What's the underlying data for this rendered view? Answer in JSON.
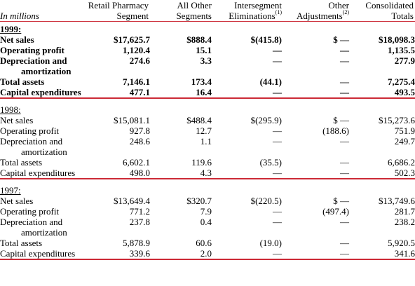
{
  "header": {
    "units": "In millions",
    "cols": [
      {
        "l1": "Retail Pharmacy",
        "l2": "Segment",
        "sup": ""
      },
      {
        "l1": "All Other",
        "l2": "Segments",
        "sup": ""
      },
      {
        "l1": "Intersegment",
        "l2": "Eliminations",
        "sup": "(1)"
      },
      {
        "l1": "Other",
        "l2": "Adjustments",
        "sup": "(2)"
      },
      {
        "l1": "Consolidated",
        "l2": "Totals",
        "sup": ""
      }
    ]
  },
  "sections": [
    {
      "year": "1999:",
      "rows": {
        "net_sales": {
          "label": "Net sales",
          "v": [
            "$17,625.7",
            "$888.4",
            "$(415.8)",
            "$ —",
            "$18,098.3"
          ]
        },
        "operating_profit": {
          "label": "Operating profit",
          "v": [
            "1,120.4",
            "15.1",
            "—",
            "—",
            "1,135.5"
          ]
        },
        "depreciation": {
          "label": "Depreciation and",
          "label2": "amortization",
          "v": [
            "274.6",
            "3.3",
            "—",
            "—",
            "277.9"
          ]
        },
        "total_assets": {
          "label": "Total assets",
          "v": [
            "7,146.1",
            "173.4",
            "(44.1)",
            "—",
            "7,275.4"
          ]
        },
        "capex": {
          "label": "Capital expenditures",
          "v": [
            "477.1",
            "16.4",
            "—",
            "—",
            "493.5"
          ]
        }
      }
    },
    {
      "year": "1998:",
      "rows": {
        "net_sales": {
          "label": "Net sales",
          "v": [
            "$15,081.1",
            "$488.4",
            "$(295.9)",
            "$ —",
            "$15,273.6"
          ]
        },
        "operating_profit": {
          "label": "Operating profit",
          "v": [
            "927.8",
            "12.7",
            "—",
            "(188.6)",
            "751.9"
          ]
        },
        "depreciation": {
          "label": "Depreciation and",
          "label2": "amortization",
          "v": [
            "248.6",
            "1.1",
            "—",
            "—",
            "249.7"
          ]
        },
        "total_assets": {
          "label": "Total assets",
          "v": [
            "6,602.1",
            "119.6",
            "(35.5)",
            "—",
            "6,686.2"
          ]
        },
        "capex": {
          "label": "Capital expenditures",
          "v": [
            "498.0",
            "4.3",
            "—",
            "—",
            "502.3"
          ]
        }
      }
    },
    {
      "year": "1997:",
      "rows": {
        "net_sales": {
          "label": "Net sales",
          "v": [
            "$13,649.4",
            "$320.7",
            "$(220.5)",
            "$ —",
            "$13,749.6"
          ]
        },
        "operating_profit": {
          "label": "Operating profit",
          "v": [
            "771.2",
            "7.9",
            "—",
            "(497.4)",
            "281.7"
          ]
        },
        "depreciation": {
          "label": "Depreciation and",
          "label2": "amortization",
          "v": [
            "237.8",
            "0.4",
            "—",
            "—",
            "238.2"
          ]
        },
        "total_assets": {
          "label": "Total assets",
          "v": [
            "5,878.9",
            "60.6",
            "(19.0)",
            "—",
            "5,920.5"
          ]
        },
        "capex": {
          "label": "Capital expenditures",
          "v": [
            "339.6",
            "2.0",
            "—",
            "—",
            "341.6"
          ]
        }
      }
    }
  ],
  "colors": {
    "rule": "#cc2a36",
    "text": "#000000",
    "background": "#ffffff"
  }
}
